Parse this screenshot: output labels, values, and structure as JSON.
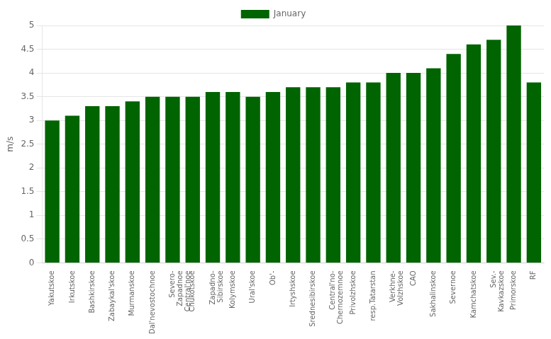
{
  "chart_data": {
    "type": "bar",
    "categories": [
      "Yakutskoe",
      "Irkutskoe",
      "Bashkirskoe",
      "Zabaykal'skoe",
      "Murmanskoe",
      "Dal'nevostochnoe",
      "Severo-\nZapadnoe\nCentral'noe",
      "Chukotskoe",
      "Zapadno-\nSibirskoe",
      "Kolymskoe",
      "Ural'skoe",
      "Ob'-",
      "Irtyshskoe",
      "Srednesibirskoe",
      "Central'no-\nChernozemnoe",
      "Privolzhskoe",
      "resp.Tatarstan",
      "Verkhne-\nVolzhskoe",
      "CAO",
      "Sakhalinskoe",
      "Severnoe",
      "Kamchatskoe",
      "Sev.-\nKavkazskoe",
      "Primorskoe",
      "RF"
    ],
    "series": [
      {
        "name": "January",
        "color": "#006400",
        "values": [
          3.0,
          3.1,
          3.3,
          3.3,
          3.4,
          3.5,
          3.5,
          3.5,
          3.6,
          3.6,
          3.5,
          3.6,
          3.7,
          3.7,
          3.7,
          3.8,
          3.8,
          4.0,
          4.0,
          4.1,
          4.4,
          4.6,
          4.7,
          5.0,
          3.8
        ]
      }
    ],
    "ylabel": "m/s",
    "ylim": [
      0,
      5.0
    ],
    "yticks": [
      0,
      0.5,
      1.0,
      1.5,
      2.0,
      2.5,
      3.0,
      3.5,
      4.0,
      4.5,
      5.0
    ],
    "grid": true,
    "legend": "top"
  }
}
